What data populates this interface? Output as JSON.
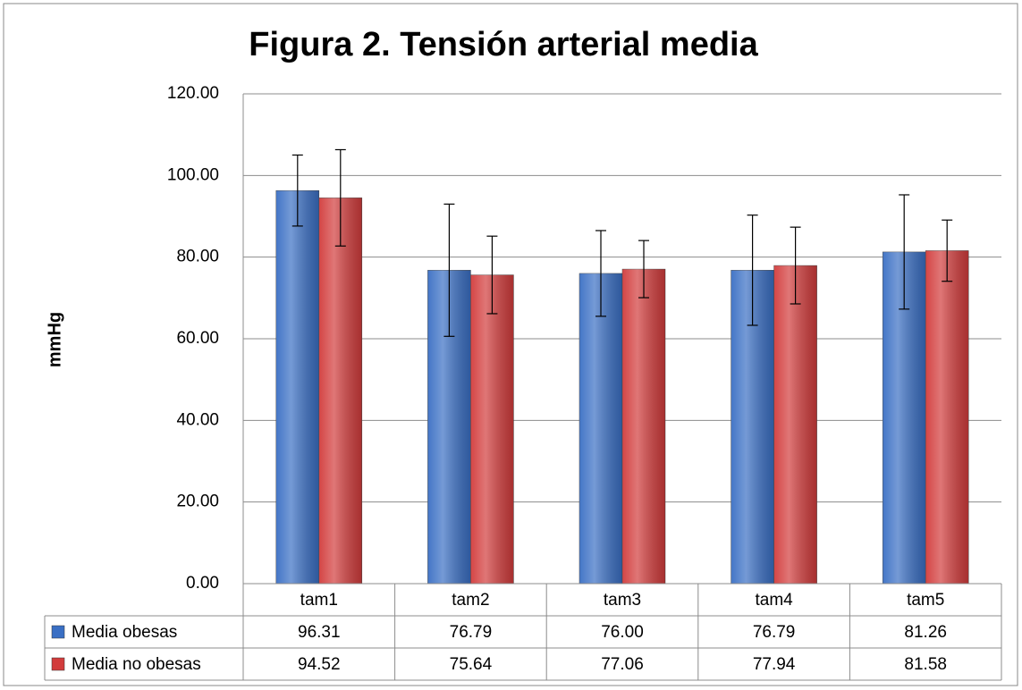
{
  "chart_data": {
    "type": "bar",
    "title": "Figura 2. Tensión arterial media",
    "y_label": "mmHg",
    "categories": [
      "tam1",
      "tam2",
      "tam3",
      "tam4",
      "tam5"
    ],
    "series": [
      {
        "name": "Media obesas",
        "color": "#3a6fc4",
        "values": [
          96.31,
          76.79,
          76.0,
          76.79,
          81.26
        ],
        "value_labels": [
          "96.31",
          "76.79",
          "76.00",
          "76.79",
          "81.26"
        ],
        "errors": [
          8.7,
          16.2,
          10.5,
          13.5,
          14.0
        ]
      },
      {
        "name": "Media no obesas",
        "color": "#d23c3c",
        "values": [
          94.52,
          75.64,
          77.06,
          77.94,
          81.58
        ],
        "value_labels": [
          "94.52",
          "75.64",
          "77.06",
          "77.94",
          "81.58"
        ],
        "errors": [
          11.8,
          9.5,
          7.0,
          9.4,
          7.5
        ]
      }
    ],
    "ylim": [
      0,
      120
    ],
    "yticks": [
      {
        "value": 0,
        "label": "0.00"
      },
      {
        "value": 20,
        "label": "20.00"
      },
      {
        "value": 40,
        "label": "40.00"
      },
      {
        "value": 60,
        "label": "60.00"
      },
      {
        "value": 80,
        "label": "80.00"
      },
      {
        "value": 100,
        "label": "100.00"
      },
      {
        "value": 120,
        "label": "120.00"
      }
    ],
    "grid": true
  }
}
